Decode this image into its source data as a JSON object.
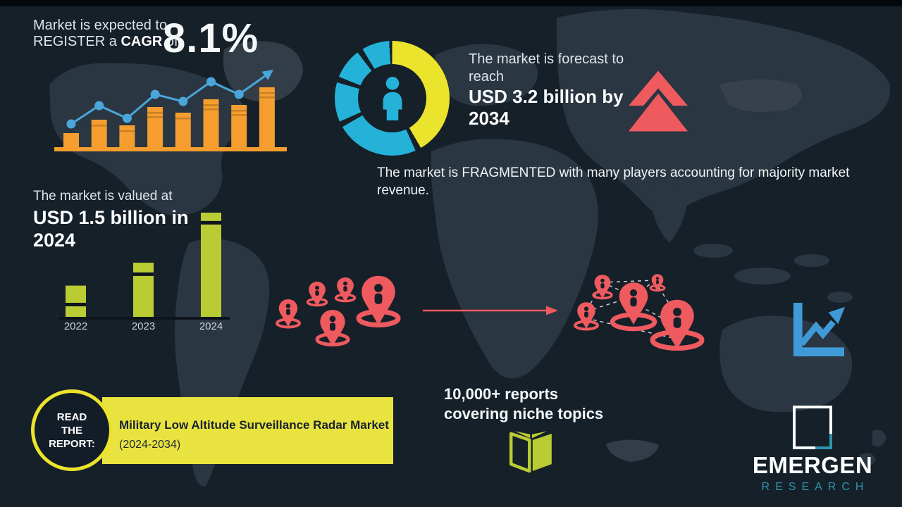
{
  "background": {
    "bg_color": "#152029",
    "map_color": "#2a3641",
    "map_light_color": "#38434e",
    "top_bar_color": "#04070b"
  },
  "top_stat": {
    "line1": "Market is expected to",
    "line2_pre": "REGISTER a ",
    "line2_bold": "CAGR",
    "line2_post": " of",
    "value": "8.1%"
  },
  "forecast": {
    "intro_line1": "The market is forecast to",
    "intro_line2": "reach",
    "value_line1": "USD 3.2 billion by",
    "value_line2": "2034"
  },
  "fragmentation": {
    "text": "The market is FRAGMENTED with many players accounting for majority market revenue."
  },
  "valuation": {
    "intro": "The market is valued at",
    "value_line1": "USD 1.5 billion in",
    "value_line2": "2024"
  },
  "reports_stat": {
    "line1": "10,000+ reports",
    "line2": "covering niche topics"
  },
  "cta": {
    "button_line1": "READ",
    "button_line2": "THE",
    "button_line3": "REPORT:",
    "report_title": "Military Low Altitude Surveillance Radar Market",
    "report_period": "(2024-2034)"
  },
  "logo": {
    "name": "EMERGEN",
    "subtitle": "RESEARCH"
  },
  "colors": {
    "orange": "#f59e2f",
    "blue_line": "#4aa6da",
    "cyan": "#25b2d8",
    "donut_yellow": "#eae42c",
    "banner_yellow": "#e9e340",
    "green": "#b9cc34",
    "coral": "#ef5a5f",
    "teal": "#2f94ad",
    "icon_blue": "#3f9bd8"
  },
  "chart_data": [
    {
      "id": "cagr-trend",
      "type": "bar",
      "title": "Stylized CAGR growth trend (no axis labels shown)",
      "bar_values": [
        2.0,
        3.9,
        3.1,
        5.7,
        4.9,
        6.8,
        6.0,
        8.5
      ],
      "line_values": [
        3.3,
        5.9,
        4.1,
        7.5,
        6.5,
        9.3,
        7.5
      ],
      "line_ends_in_arrow": true,
      "bar_color": "#f59e2f",
      "line_color": "#4aa6da",
      "ylim": [
        0,
        10
      ]
    },
    {
      "id": "valuation-bars",
      "type": "bar",
      "title": "Market value by year (2024 labeled USD 1.5 billion; earlier years estimated from bar heights)",
      "categories": [
        "2022",
        "2023",
        "2024"
      ],
      "values": [
        0.45,
        0.78,
        1.5
      ],
      "unit": "USD billion",
      "bar_color": "#b9cc34",
      "stripe_fractions": [
        0.55,
        0.18,
        0.08
      ],
      "ylim": [
        0,
        1.6
      ]
    },
    {
      "id": "forecast-donut",
      "type": "pie",
      "title": "Decorative donut around person icon",
      "segments": [
        {
          "color": "#eae42c",
          "start_deg": 0,
          "end_deg": 150
        },
        {
          "color": "#25b2d8",
          "start_deg": 156,
          "end_deg": 240
        },
        {
          "color": "#25b2d8",
          "start_deg": 246,
          "end_deg": 286
        },
        {
          "color": "#25b2d8",
          "start_deg": 292,
          "end_deg": 323
        },
        {
          "color": "#25b2d8",
          "start_deg": 329,
          "end_deg": 357
        }
      ]
    }
  ]
}
